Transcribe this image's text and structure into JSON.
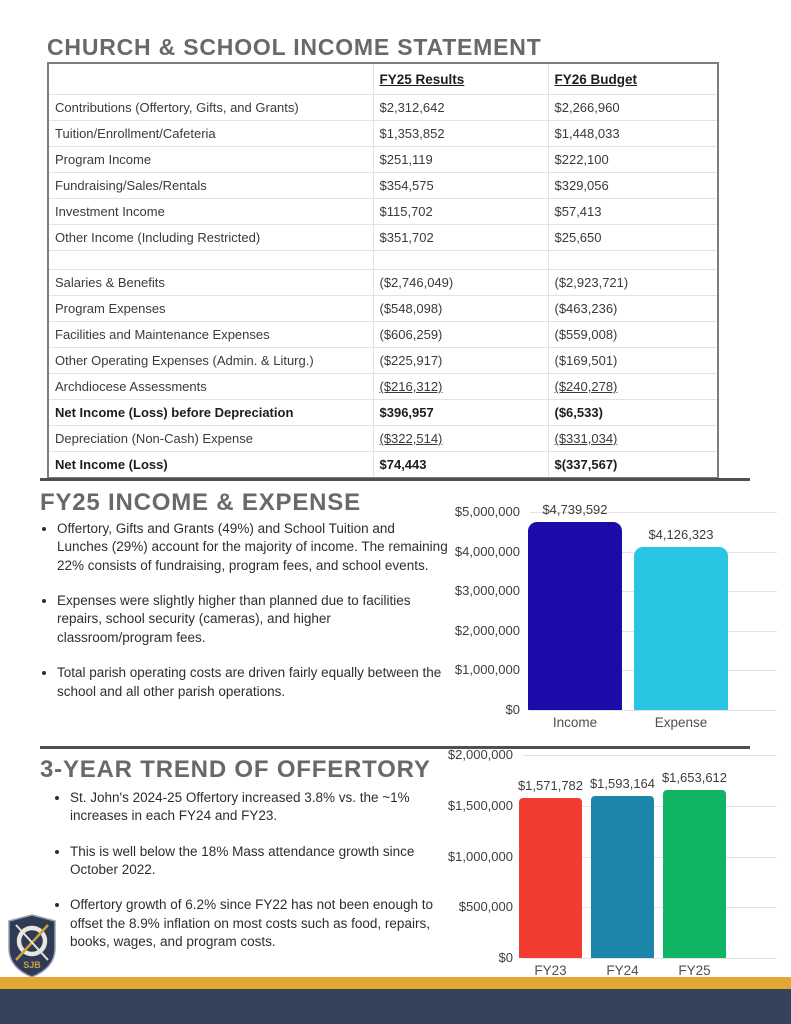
{
  "income_statement": {
    "title": "CHURCH & SCHOOL INCOME STATEMENT",
    "col_headers": [
      "FY25 Results",
      "FY26 Budget"
    ],
    "rows": [
      {
        "label": "Contributions (Offertory, Gifts, and Grants)",
        "fy25": "$2,312,642",
        "fy26": "$2,266,960",
        "style": "normal"
      },
      {
        "label": "Tuition/Enrollment/Cafeteria",
        "fy25": "$1,353,852",
        "fy26": "$1,448,033",
        "style": "normal"
      },
      {
        "label": "Program Income",
        "fy25": "$251,119",
        "fy26": "$222,100",
        "style": "normal"
      },
      {
        "label": "Fundraising/Sales/Rentals",
        "fy25": "$354,575",
        "fy26": "$329,056",
        "style": "normal"
      },
      {
        "label": "Investment Income",
        "fy25": "$115,702",
        "fy26": "$57,413",
        "style": "normal"
      },
      {
        "label": "Other Income (Including Restricted)",
        "fy25": "$351,702",
        "fy26": "$25,650",
        "style": "normal"
      },
      {
        "label": "",
        "fy25": "",
        "fy26": "",
        "style": "spacer"
      },
      {
        "label": "Salaries & Benefits",
        "fy25": "($2,746,049)",
        "fy26": "($2,923,721)",
        "style": "normal"
      },
      {
        "label": "Program Expenses",
        "fy25": "($548,098)",
        "fy26": "($463,236)",
        "style": "normal"
      },
      {
        "label": "Facilities and Maintenance Expenses",
        "fy25": "($606,259)",
        "fy26": "($559,008)",
        "style": "normal"
      },
      {
        "label": "Other Operating Expenses (Admin. & Liturg.)",
        "fy25": "($225,917)",
        "fy26": "($169,501)",
        "style": "normal"
      },
      {
        "label": "Archdiocese Assessments",
        "fy25": "($216,312)",
        "fy26": "($240,278)",
        "style": "underline_values"
      },
      {
        "label": "Net Income (Loss) before Depreciation",
        "fy25": "$396,957",
        "fy26": "($6,533)",
        "style": "bold"
      },
      {
        "label": "Depreciation (Non-Cash) Expense",
        "fy25": "($322,514)",
        "fy26": "($331,034)",
        "style": "underline_values"
      },
      {
        "label": "Net Income (Loss)",
        "fy25": "$74,443",
        "fy26": "$(337,567)",
        "style": "bold"
      }
    ]
  },
  "fy25_section": {
    "title": "FY25 INCOME & EXPENSE",
    "bullets": [
      "Offertory, Gifts and Grants (49%) and School Tuition and Lunches (29%) account for the majority of income.  The remaining 22% consists of fundraising, program fees, and school events.",
      "Expenses were slightly higher than planned due to facilities repairs, school security (cameras), and higher classroom/program fees.",
      "Total parish operating costs are driven fairly equally between the school and all other parish operations."
    ]
  },
  "trend_section": {
    "title": "3-YEAR TREND OF OFFERTORY",
    "bullets": [
      "St. John's 2024-25 Offertory increased 3.8% vs. the ~1% increases in each FY24 and FY23.",
      "This is well below the 18% Mass attendance growth since October 2022.",
      "Offertory growth of 6.2% since FY22 has not been enough to offset the 8.9% inflation on most costs such as food, repairs, books, wages, and program costs."
    ]
  },
  "logo": {
    "initials": "SJB"
  },
  "colors": {
    "title_gray": "#696969",
    "divider_gray": "#4f4f4f",
    "footer_gold": "#e2a733",
    "footer_navy": "#36415a",
    "income_bar": "#1c0ba8",
    "expense_bar": "#29c5e2",
    "fy23_bar": "#f23b31",
    "fy24_bar": "#1b86aa",
    "fy25_bar": "#10b564"
  },
  "chart_data": [
    {
      "type": "bar",
      "title": "FY25 Income vs Expense",
      "categories": [
        "Income",
        "Expense"
      ],
      "values": [
        4739592,
        4126323
      ],
      "value_labels": [
        "$4,739,592",
        "$4,126,323"
      ],
      "bar_colors": [
        "#1c0ba8",
        "#29c5e2"
      ],
      "ylim": [
        0,
        5000000
      ],
      "yticks": [
        5000000,
        4000000,
        3000000,
        2000000,
        1000000,
        0
      ],
      "ytick_labels": [
        "$5,000,000",
        "$4,000,000",
        "$3,000,000",
        "$2,000,000",
        "$1,000,000",
        "$0"
      ],
      "grid": true,
      "legend": false
    },
    {
      "type": "bar",
      "title": "3-Year Trend of Offertory",
      "categories": [
        "FY23",
        "FY24",
        "FY25"
      ],
      "values": [
        1571782,
        1593164,
        1653612
      ],
      "value_labels": [
        "$1,571,782",
        "$1,593,164",
        "$1,653,612"
      ],
      "bar_colors": [
        "#f23b31",
        "#1b86aa",
        "#10b564"
      ],
      "ylim": [
        0,
        2000000
      ],
      "yticks": [
        2000000,
        1500000,
        1000000,
        500000,
        0
      ],
      "ytick_labels": [
        "$2,000,000",
        "$1,500,000",
        "$1,000,000",
        "$500,000",
        "$0"
      ],
      "grid": true,
      "legend": false
    }
  ]
}
